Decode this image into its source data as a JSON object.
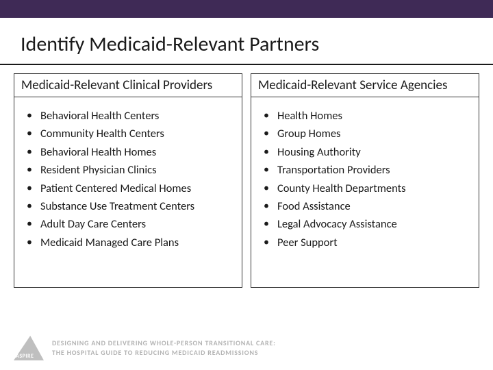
{
  "colors": {
    "top_bar": "#3f2a56",
    "text": "#1a1a1a",
    "border": "#333333",
    "footer_gray": "#b3b3b3",
    "logo_gray": "#bfbfbf"
  },
  "typography": {
    "title_fontsize": 30,
    "column_header_fontsize": 19,
    "item_fontsize": 16.5,
    "footer_fontsize": 10
  },
  "title": "Identify Medicaid-Relevant Partners",
  "columns": [
    {
      "header": "Medicaid-Relevant Clinical Providers",
      "items": [
        "Behavioral Health Centers",
        "Community Health Centers",
        "Behavioral Health Homes",
        "Resident Physician Clinics",
        "Patient Centered Medical Homes",
        "Substance Use Treatment Centers",
        "Adult Day Care Centers",
        "Medicaid Managed Care Plans"
      ]
    },
    {
      "header": "Medicaid-Relevant Service Agencies",
      "items": [
        "Health Homes",
        "Group Homes",
        "Housing Authority",
        "Transportation Providers",
        "County Health Departments",
        "Food Assistance",
        "Legal Advocacy Assistance",
        "Peer Support"
      ]
    }
  ],
  "footer": {
    "logo_label": "ASPIRE",
    "line1": "DESIGNING AND DELIVERING WHOLE-PERSON TRANSITIONAL CARE:",
    "line2": "THE HOSPITAL GUIDE TO REDUCING MEDICAID READMISSIONS"
  }
}
